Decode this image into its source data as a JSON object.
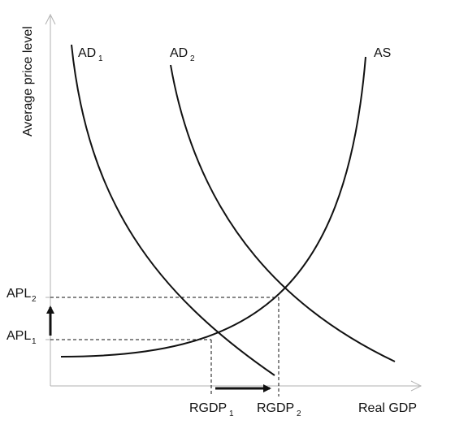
{
  "diagram": {
    "y_axis_title": "Average price level",
    "x_axis_title": "Real GDP",
    "curves": {
      "ad1": {
        "main": "AD",
        "sub": "1"
      },
      "ad2": {
        "main": "AD",
        "sub": "2"
      },
      "as": {
        "main": "AS"
      }
    },
    "y_markers": {
      "apl1": {
        "main": "APL",
        "sub": "1"
      },
      "apl2": {
        "main": "APL",
        "sub": "2"
      }
    },
    "x_markers": {
      "rgdp1": {
        "main": "RGDP",
        "sub": "1"
      },
      "rgdp2": {
        "main": "RGDP",
        "sub": "2"
      }
    },
    "colors": {
      "line": "#111111",
      "axis": "#b0b0b0"
    }
  }
}
